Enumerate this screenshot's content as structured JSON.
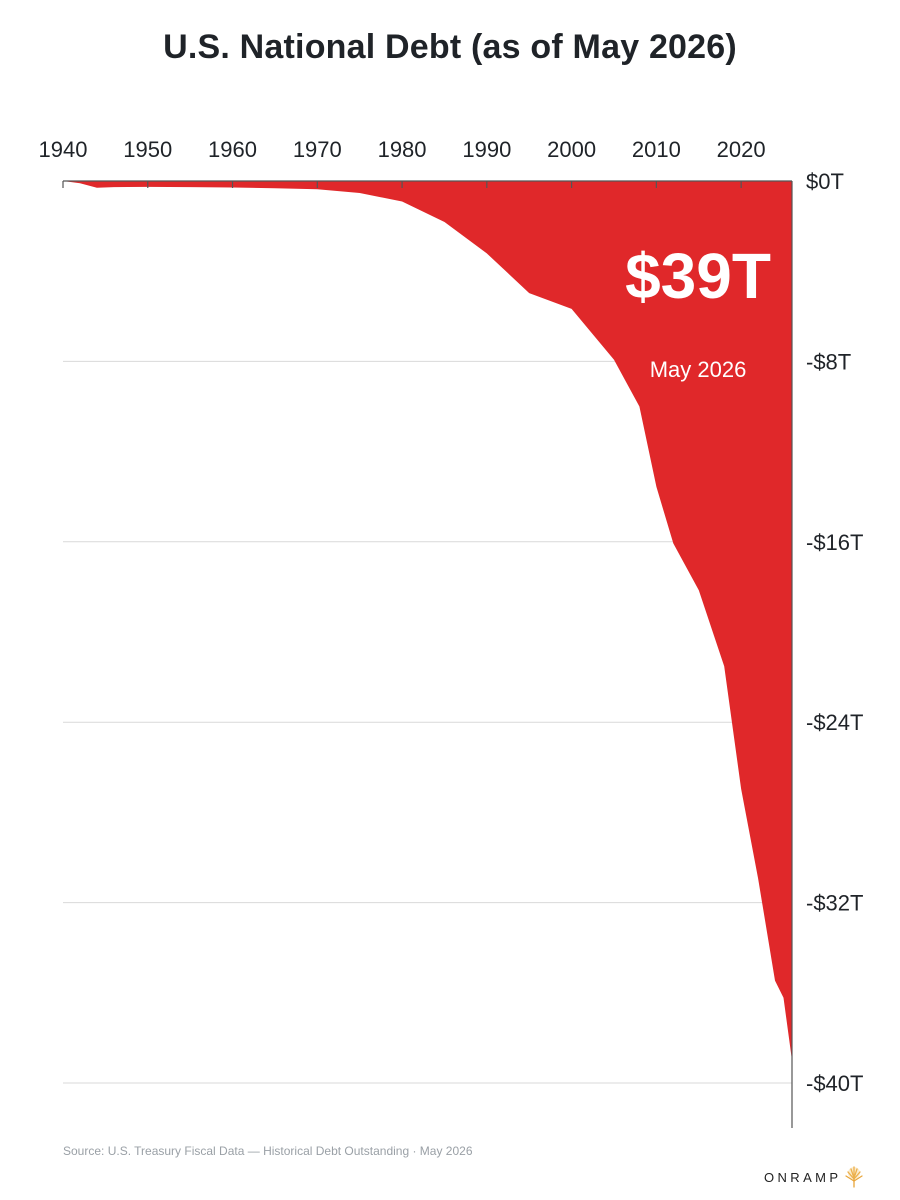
{
  "title": "U.S. National Debt (as of May 2026)",
  "source": "Source: U.S. Treasury Fiscal Data — Historical Debt Outstanding · May 2026",
  "brand": "ONRAMP",
  "colors": {
    "fill": "#e0282a",
    "grid": "#d9d9d9",
    "axis": "#555555",
    "text": "#1f2328"
  },
  "chart_data": {
    "type": "area",
    "title": "U.S. National Debt (as of May 2026)",
    "x_ticks": [
      "1940",
      "1950",
      "1960",
      "1970",
      "1980",
      "1990",
      "2000",
      "2010",
      "2020"
    ],
    "y_ticks": [
      "$0T",
      "-$8T",
      "-$16T",
      "-$24T",
      "-$32T",
      "-$40T"
    ],
    "xlim": [
      1940,
      2026
    ],
    "ylim": [
      -40,
      0
    ],
    "x_axis_position": "top",
    "y_axis_position": "right",
    "grid": true,
    "annotation": {
      "value": "$39T",
      "subtitle": "May 2026"
    },
    "series": [
      {
        "x": [
          1940,
          1942,
          1944,
          1946,
          1950,
          1955,
          1960,
          1965,
          1970,
          1975,
          1980,
          1985,
          1990,
          1995,
          2000,
          2005,
          2008,
          2010,
          2012,
          2015,
          2018,
          2020,
          2022,
          2024,
          2025,
          2026
        ],
        "values": [
          0,
          -0.1,
          -0.3,
          -0.27,
          -0.26,
          -0.27,
          -0.29,
          -0.32,
          -0.37,
          -0.53,
          -0.91,
          -1.82,
          -3.21,
          -4.97,
          -5.67,
          -7.93,
          -10.0,
          -13.56,
          -16.07,
          -18.15,
          -21.52,
          -26.95,
          -30.93,
          -35.46,
          -36.22,
          -39.0
        ]
      }
    ]
  }
}
